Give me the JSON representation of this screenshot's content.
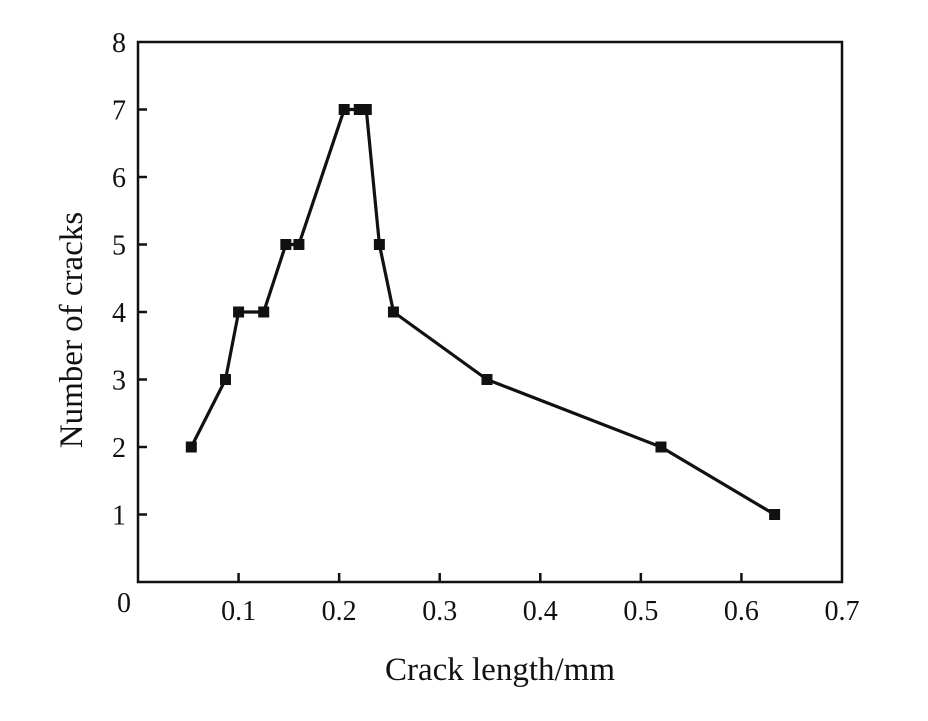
{
  "chart_data": {
    "type": "line",
    "xlabel": "Crack length/mm",
    "ylabel": "Number of cracks",
    "xlim": [
      0,
      0.7
    ],
    "ylim": [
      0,
      8
    ],
    "x_ticks": [
      "0",
      "0.1",
      "0.2",
      "0.3",
      "0.4",
      "0.5",
      "0.6",
      "0.7"
    ],
    "y_ticks": [
      "1",
      "2",
      "3",
      "4",
      "5",
      "6",
      "7",
      "8"
    ],
    "grid": false,
    "marker": "square",
    "series": [
      {
        "x": [
          0.053,
          0.087,
          0.1,
          0.125,
          0.147,
          0.16,
          0.205,
          0.22,
          0.227,
          0.24,
          0.254,
          0.347,
          0.52,
          0.633
        ],
        "y": [
          2,
          3,
          4,
          4,
          5,
          5,
          7,
          7,
          7,
          5,
          4,
          3,
          2,
          1
        ]
      }
    ]
  }
}
